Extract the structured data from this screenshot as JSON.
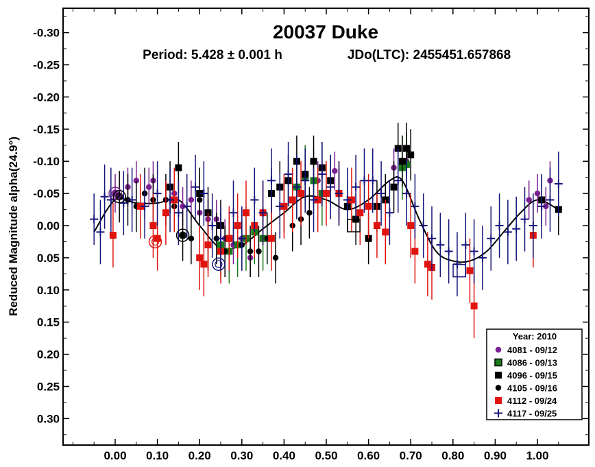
{
  "chart_data": {
    "type": "scatter",
    "title": "20037 Duke",
    "subtitle_period": "Period: 5.428 ± 0.001 h",
    "subtitle_jd": "JDo(LTC): 2455451.657868",
    "ylabel": "Reduced Magnitude alpha(24.9°)",
    "xlabel": "",
    "xlim": [
      -0.12,
      1.1
    ],
    "ylim": [
      0.35,
      -0.35
    ],
    "y_inverted": true,
    "x_ticks": [
      "0.00",
      "0.10",
      "0.20",
      "0.30",
      "0.40",
      "0.50",
      "0.60",
      "0.70",
      "0.80",
      "0.90",
      "1.00"
    ],
    "x_tick_values": [
      0.0,
      0.1,
      0.2,
      0.3,
      0.4,
      0.5,
      0.6,
      0.7,
      0.8,
      0.9,
      1.0
    ],
    "y_ticks": [
      "-0.30",
      "-0.25",
      "-0.20",
      "-0.15",
      "-0.10",
      "-0.05",
      "0.00",
      "0.05",
      "0.10",
      "0.15",
      "0.20",
      "0.25",
      "0.30"
    ],
    "y_tick_values": [
      -0.3,
      -0.25,
      -0.2,
      -0.15,
      -0.1,
      -0.05,
      0.0,
      0.05,
      0.1,
      0.15,
      0.2,
      0.25,
      0.3
    ],
    "grid": false,
    "legend": {
      "placement": "bottom-right",
      "title": "Year: 2010",
      "entries": [
        "4081 - 09/12",
        "4086 - 09/13",
        "4096 - 09/15",
        "4105 - 09/16",
        "4112 - 09/24",
        "4117 - 09/25"
      ]
    },
    "fit_curve": {
      "x": [
        -0.05,
        0.0,
        0.05,
        0.1,
        0.15,
        0.2,
        0.25,
        0.3,
        0.35,
        0.4,
        0.45,
        0.5,
        0.55,
        0.6,
        0.65,
        0.68,
        0.72,
        0.76,
        0.8,
        0.84,
        0.88,
        0.92,
        0.96,
        1.0,
        1.05
      ],
      "y": [
        0.01,
        -0.04,
        -0.035,
        -0.035,
        -0.04,
        0.0,
        0.035,
        0.03,
        0.005,
        -0.02,
        -0.045,
        -0.04,
        -0.025,
        -0.04,
        -0.07,
        -0.07,
        -0.01,
        0.04,
        0.055,
        0.055,
        0.04,
        0.01,
        -0.02,
        -0.04,
        -0.025
      ]
    },
    "series": [
      {
        "name": "4081 - 09/12",
        "color": "#7a1f8f",
        "marker": "circle",
        "x": [
          0.0,
          0.03,
          0.05,
          0.08,
          0.09,
          0.12,
          0.14,
          0.16,
          0.18,
          0.2,
          0.22,
          0.24,
          0.26,
          0.28,
          0.3,
          0.32,
          0.48,
          0.52,
          0.66,
          0.69,
          0.98,
          1.0,
          1.02,
          1.03
        ],
        "y": [
          -0.05,
          -0.06,
          -0.07,
          -0.06,
          -0.07,
          -0.04,
          -0.05,
          -0.03,
          -0.04,
          -0.02,
          -0.01,
          -0.01,
          0.02,
          0.03,
          0.02,
          0.05,
          -0.07,
          -0.085,
          -0.09,
          -0.1,
          -0.04,
          -0.05,
          -0.03,
          -0.07
        ],
        "err": [
          0.03,
          0.03,
          0.03,
          0.03,
          0.03,
          0.03,
          0.03,
          0.03,
          0.03,
          0.03,
          0.03,
          0.03,
          0.03,
          0.03,
          0.03,
          0.03,
          0.03,
          0.03,
          0.03,
          0.03,
          0.03,
          0.03,
          0.03,
          0.03
        ]
      },
      {
        "name": "4086 - 09/13",
        "color": "#1a7a1a",
        "marker": "square",
        "x": [
          0.25,
          0.27,
          0.29,
          0.31,
          0.33,
          0.35,
          0.43,
          0.45,
          0.47,
          0.49,
          0.68,
          0.69
        ],
        "y": [
          0.03,
          0.04,
          0.03,
          0.02,
          0.01,
          0.02,
          -0.06,
          -0.075,
          -0.07,
          -0.05,
          -0.09,
          -0.095
        ],
        "err": [
          0.05,
          0.05,
          0.05,
          0.05,
          0.05,
          0.05,
          0.05,
          0.05,
          0.05,
          0.05,
          0.05,
          0.05
        ]
      },
      {
        "name": "4096 - 09/15",
        "color": "#000000",
        "marker": "square",
        "x": [
          0.13,
          0.15,
          0.2,
          0.22,
          0.25,
          0.27,
          0.37,
          0.39,
          0.41,
          0.43,
          0.45,
          0.47,
          0.49,
          0.51,
          0.53,
          0.55,
          0.57,
          0.6,
          0.62,
          0.64,
          0.66,
          0.67,
          0.68,
          0.69,
          0.7,
          1.01,
          1.05
        ],
        "y": [
          -0.06,
          -0.09,
          -0.05,
          -0.02,
          0.0,
          0.02,
          -0.05,
          -0.06,
          -0.07,
          -0.1,
          -0.08,
          -0.1,
          -0.09,
          -0.07,
          -0.05,
          -0.03,
          -0.01,
          0.02,
          -0.03,
          -0.04,
          -0.06,
          -0.12,
          -0.1,
          -0.12,
          -0.11,
          -0.04,
          -0.025
        ],
        "err": [
          0.04,
          0.04,
          0.04,
          0.04,
          0.04,
          0.04,
          0.04,
          0.04,
          0.04,
          0.04,
          0.04,
          0.04,
          0.04,
          0.04,
          0.04,
          0.04,
          0.04,
          0.04,
          0.04,
          0.04,
          0.04,
          0.04,
          0.04,
          0.04,
          0.04,
          0.04,
          0.04
        ]
      },
      {
        "name": "4105 - 09/16",
        "color": "#000000",
        "marker": "circle",
        "x": [
          0.01,
          0.03,
          0.05,
          0.07,
          0.09,
          0.12,
          0.14,
          0.16,
          0.18,
          0.2,
          0.22,
          0.24,
          0.26,
          0.3,
          0.32,
          0.34,
          0.36,
          0.38,
          0.4,
          0.42,
          0.44,
          0.46
        ],
        "y": [
          -0.045,
          -0.04,
          -0.03,
          -0.05,
          -0.04,
          -0.04,
          -0.03,
          0.015,
          0.02,
          -0.04,
          0.03,
          0.02,
          0.04,
          0.03,
          0.04,
          0.04,
          0.02,
          0.05,
          -0.03,
          0.0,
          -0.01,
          -0.02
        ],
        "err": [
          0.04,
          0.04,
          0.04,
          0.04,
          0.04,
          0.04,
          0.04,
          0.04,
          0.04,
          0.04,
          0.04,
          0.04,
          0.04,
          0.04,
          0.04,
          0.04,
          0.04,
          0.04,
          0.04,
          0.04,
          0.04,
          0.04
        ]
      },
      {
        "name": "4112 - 09/24",
        "color": "#e0140e",
        "marker": "square",
        "x": [
          -0.005,
          0.06,
          0.09,
          0.1,
          0.12,
          0.14,
          0.2,
          0.21,
          0.22,
          0.25,
          0.27,
          0.29,
          0.31,
          0.33,
          0.35,
          0.37,
          0.4,
          0.42,
          0.44,
          0.48,
          0.5,
          0.53,
          0.56,
          0.58,
          0.6,
          0.62,
          0.64,
          0.7,
          0.71,
          0.74,
          0.75,
          0.84,
          0.85,
          0.99
        ],
        "y": [
          0.015,
          -0.03,
          0.0,
          0.02,
          -0.02,
          -0.04,
          0.05,
          0.06,
          0.03,
          0.04,
          0.02,
          0.0,
          -0.02,
          0.0,
          -0.02,
          0.02,
          -0.03,
          -0.04,
          -0.05,
          -0.04,
          -0.05,
          -0.05,
          -0.04,
          -0.02,
          -0.03,
          0.0,
          0.01,
          0.0,
          0.04,
          0.06,
          0.065,
          0.07,
          0.125,
          0.015
        ],
        "err": [
          0.05,
          0.05,
          0.05,
          0.05,
          0.05,
          0.05,
          0.05,
          0.05,
          0.05,
          0.05,
          0.05,
          0.05,
          0.05,
          0.05,
          0.05,
          0.05,
          0.05,
          0.05,
          0.05,
          0.05,
          0.05,
          0.05,
          0.05,
          0.05,
          0.05,
          0.05,
          0.05,
          0.05,
          0.05,
          0.05,
          0.05,
          0.05,
          0.05,
          0.05
        ]
      },
      {
        "name": "4117 - 09/25",
        "color": "#13137a",
        "marker": "plus",
        "x": [
          -0.05,
          -0.035,
          -0.025,
          -0.01,
          0.02,
          0.04,
          0.07,
          0.1,
          0.13,
          0.15,
          0.17,
          0.19,
          0.21,
          0.23,
          0.25,
          0.28,
          0.3,
          0.33,
          0.35,
          0.37,
          0.39,
          0.41,
          0.43,
          0.45,
          0.47,
          0.49,
          0.51,
          0.53,
          0.55,
          0.57,
          0.59,
          0.61,
          0.63,
          0.65,
          0.67,
          0.69,
          0.71,
          0.73,
          0.75,
          0.77,
          0.79,
          0.81,
          0.83,
          0.85,
          0.87,
          0.89,
          0.91,
          0.93,
          0.95,
          0.97,
          0.99,
          1.01,
          1.03,
          1.05
        ],
        "y": [
          -0.01,
          0.01,
          -0.045,
          -0.04,
          -0.035,
          -0.04,
          -0.03,
          -0.05,
          -0.04,
          -0.02,
          -0.03,
          -0.06,
          -0.05,
          0.0,
          0.02,
          -0.02,
          0.02,
          -0.04,
          -0.02,
          -0.07,
          -0.03,
          -0.08,
          -0.06,
          -0.07,
          -0.04,
          -0.08,
          -0.06,
          -0.05,
          -0.04,
          -0.06,
          -0.07,
          -0.07,
          -0.05,
          -0.02,
          -0.07,
          -0.05,
          -0.03,
          0.0,
          0.02,
          0.03,
          0.04,
          0.06,
          0.03,
          0.04,
          0.05,
          0.02,
          0.0,
          0.01,
          0.005,
          -0.01,
          0.0,
          -0.03,
          -0.04,
          -0.065
        ],
        "err": [
          0.04,
          0.05,
          0.05,
          0.05,
          0.05,
          0.05,
          0.05,
          0.05,
          0.05,
          0.05,
          0.05,
          0.05,
          0.05,
          0.05,
          0.05,
          0.05,
          0.05,
          0.05,
          0.05,
          0.05,
          0.05,
          0.05,
          0.05,
          0.05,
          0.05,
          0.05,
          0.05,
          0.05,
          0.05,
          0.05,
          0.05,
          0.05,
          0.05,
          0.05,
          0.05,
          0.05,
          0.05,
          0.05,
          0.05,
          0.05,
          0.05,
          0.05,
          0.05,
          0.05,
          0.05,
          0.05,
          0.05,
          0.05,
          0.05,
          0.05,
          0.05,
          0.05,
          0.05,
          0.05
        ]
      }
    ],
    "session_starts": [
      {
        "series": "4081 - 09/12",
        "x": 0.0,
        "y": -0.05,
        "marker": "circle"
      },
      {
        "series": "4105 - 09/16",
        "x": 0.01,
        "y": -0.045,
        "marker": "circle"
      },
      {
        "series": "4112 - 09/24",
        "x": 0.095,
        "y": 0.025,
        "marker": "circle"
      },
      {
        "series": "4105 - 09/16",
        "x": 0.16,
        "y": 0.015,
        "marker": "circle"
      },
      {
        "series": "4117 - 09/25",
        "x": 0.245,
        "y": 0.06,
        "marker": "circle"
      },
      {
        "series": "4096 - 09/15",
        "x": 0.565,
        "y": 0.0,
        "marker": "square"
      },
      {
        "series": "4117 - 09/25",
        "x": 0.815,
        "y": 0.07,
        "marker": "square"
      }
    ]
  }
}
